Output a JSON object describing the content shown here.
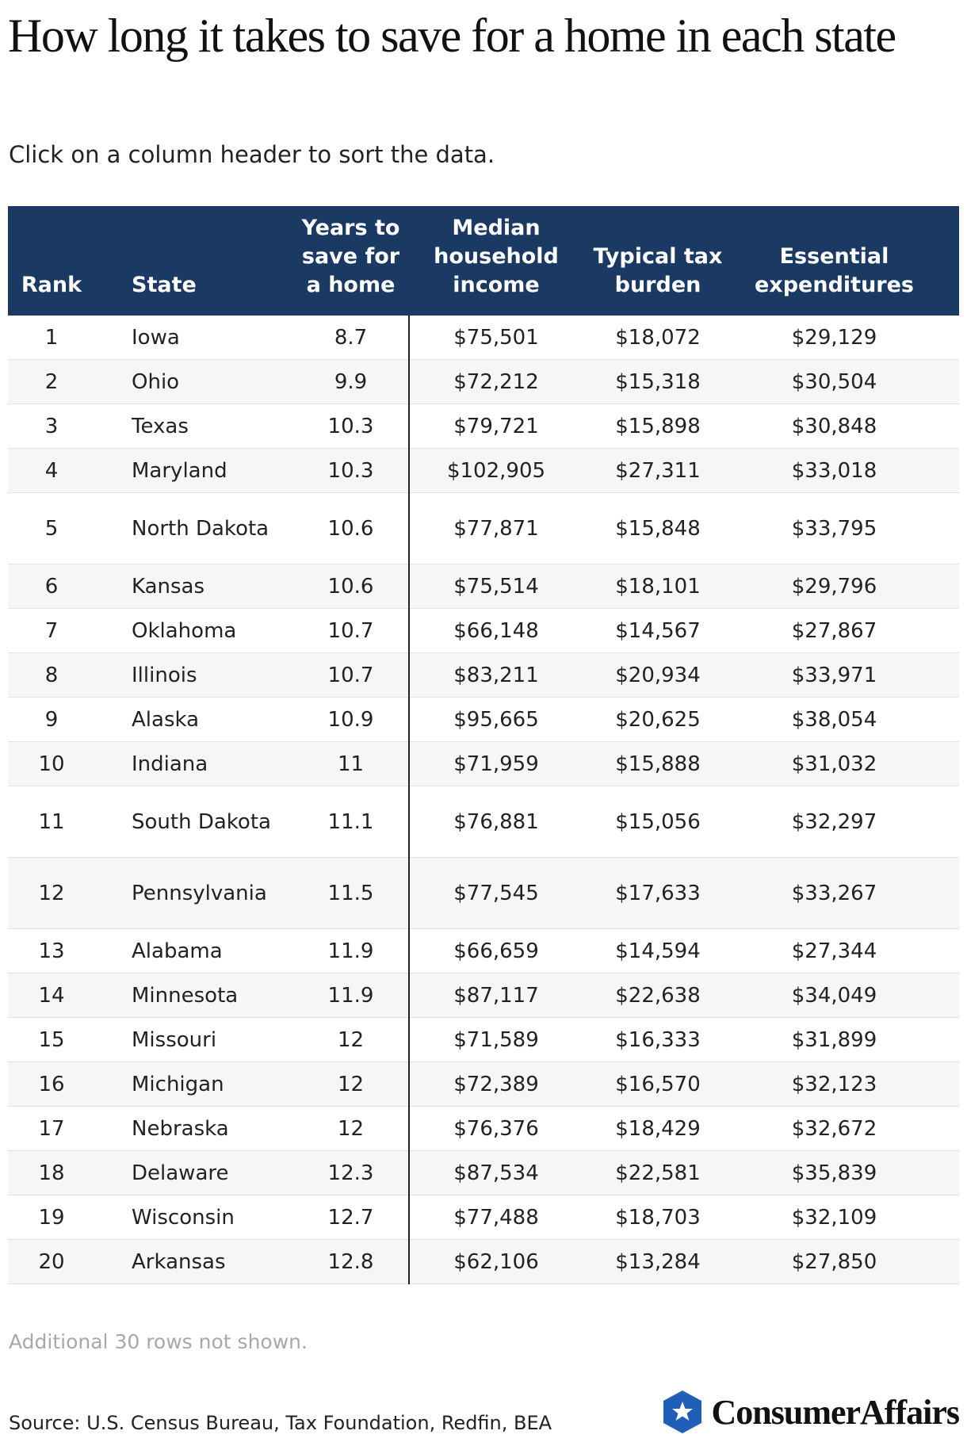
{
  "header": {
    "title": "How long it takes to save for a home in each state",
    "subtitle": "Click on a column header to sort the data."
  },
  "table": {
    "columns": [
      "Rank",
      "State",
      "Years to save for a home",
      "Median household income",
      "Typical tax burden",
      "Essential expenditures"
    ],
    "rows": [
      [
        1,
        "Iowa",
        8.7,
        "$75,501",
        "$18,072",
        "$29,129"
      ],
      [
        2,
        "Ohio",
        9.9,
        "$72,212",
        "$15,318",
        "$30,504"
      ],
      [
        3,
        "Texas",
        10.3,
        "$79,721",
        "$15,898",
        "$30,848"
      ],
      [
        4,
        "Maryland",
        10.3,
        "$102,905",
        "$27,311",
        "$33,018"
      ],
      [
        5,
        "North Dakota",
        10.6,
        "$77,871",
        "$15,848",
        "$33,795"
      ],
      [
        6,
        "Kansas",
        10.6,
        "$75,514",
        "$18,101",
        "$29,796"
      ],
      [
        7,
        "Oklahoma",
        10.7,
        "$66,148",
        "$14,567",
        "$27,867"
      ],
      [
        8,
        "Illinois",
        10.7,
        "$83,211",
        "$20,934",
        "$33,971"
      ],
      [
        9,
        "Alaska",
        10.9,
        "$95,665",
        "$20,625",
        "$38,054"
      ],
      [
        10,
        "Indiana",
        11,
        "$71,959",
        "$15,888",
        "$31,032"
      ],
      [
        11,
        "South Dakota",
        11.1,
        "$76,881",
        "$15,056",
        "$32,297"
      ],
      [
        12,
        "Pennsylvania",
        11.5,
        "$77,545",
        "$17,633",
        "$33,267"
      ],
      [
        13,
        "Alabama",
        11.9,
        "$66,659",
        "$14,594",
        "$27,344"
      ],
      [
        14,
        "Minnesota",
        11.9,
        "$87,117",
        "$22,638",
        "$34,049"
      ],
      [
        15,
        "Missouri",
        12,
        "$71,589",
        "$16,333",
        "$31,899"
      ],
      [
        16,
        "Michigan",
        12,
        "$72,389",
        "$16,570",
        "$32,123"
      ],
      [
        17,
        "Nebraska",
        12,
        "$76,376",
        "$18,429",
        "$32,672"
      ],
      [
        18,
        "Delaware",
        12.3,
        "$87,534",
        "$22,581",
        "$35,839"
      ],
      [
        19,
        "Wisconsin",
        12.7,
        "$77,488",
        "$18,703",
        "$32,109"
      ],
      [
        20,
        "Arkansas",
        12.8,
        "$62,106",
        "$13,284",
        "$27,850"
      ]
    ]
  },
  "footer": {
    "note": "Additional 30 rows not shown.",
    "source": "Source: U.S. Census Bureau, Tax Foundation, Redfin, BEA",
    "logo": "ConsumerAffairs"
  }
}
